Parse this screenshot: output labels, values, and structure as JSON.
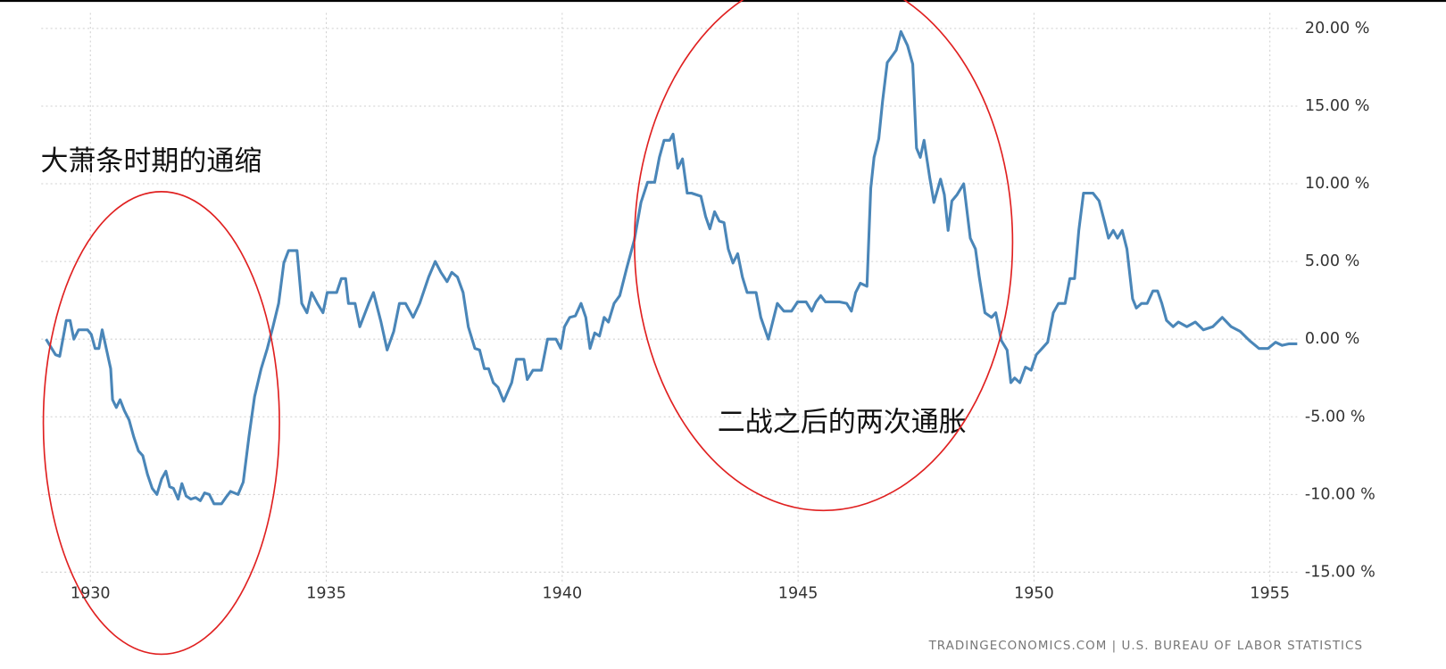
{
  "chart_data": {
    "type": "line",
    "x": [
      1929.06,
      1929.26,
      1929.35,
      1929.49,
      1929.57,
      1929.65,
      1929.75,
      1929.94,
      1930.02,
      1930.1,
      1930.18,
      1930.25,
      1930.43,
      1930.47,
      1930.55,
      1930.63,
      1930.72,
      1930.82,
      1930.92,
      1931.02,
      1931.11,
      1931.21,
      1931.31,
      1931.41,
      1931.51,
      1931.6,
      1931.68,
      1931.76,
      1931.86,
      1931.94,
      1932.03,
      1932.13,
      1932.23,
      1932.33,
      1932.42,
      1932.52,
      1932.62,
      1932.78,
      1932.87,
      1932.97,
      1933.13,
      1933.24,
      1933.36,
      1933.48,
      1933.62,
      1933.75,
      1933.87,
      1933.99,
      1934.1,
      1934.2,
      1934.38,
      1934.48,
      1934.59,
      1934.69,
      1934.81,
      1934.93,
      1935.02,
      1935.22,
      1935.32,
      1935.41,
      1935.47,
      1935.61,
      1935.71,
      1935.9,
      1936.0,
      1936.16,
      1936.29,
      1936.43,
      1936.55,
      1936.68,
      1936.84,
      1936.98,
      1937.17,
      1937.31,
      1937.43,
      1937.56,
      1937.66,
      1937.78,
      1937.9,
      1938.01,
      1938.15,
      1938.25,
      1938.35,
      1938.44,
      1938.54,
      1938.64,
      1938.76,
      1938.93,
      1939.03,
      1939.19,
      1939.26,
      1939.38,
      1939.56,
      1939.69,
      1939.87,
      1939.97,
      1940.05,
      1940.16,
      1940.28,
      1940.4,
      1940.5,
      1940.59,
      1940.69,
      1940.79,
      1940.89,
      1940.98,
      1941.1,
      1941.22,
      1941.37,
      1941.53,
      1941.67,
      1941.81,
      1941.96,
      1942.06,
      1942.16,
      1942.28,
      1942.35,
      1942.45,
      1942.55,
      1942.65,
      1942.74,
      1942.94,
      1943.04,
      1943.13,
      1943.23,
      1943.33,
      1943.43,
      1943.52,
      1943.62,
      1943.72,
      1943.82,
      1943.92,
      1944.11,
      1944.21,
      1944.37,
      1944.56,
      1944.7,
      1944.86,
      1944.99,
      1945.17,
      1945.29,
      1945.38,
      1945.48,
      1945.58,
      1945.87,
      1946.03,
      1946.13,
      1946.22,
      1946.32,
      1946.46,
      1946.54,
      1946.61,
      1946.71,
      1946.79,
      1946.89,
      1947.01,
      1947.08,
      1947.18,
      1947.32,
      1947.43,
      1947.51,
      1947.59,
      1947.67,
      1947.79,
      1947.88,
      1948.02,
      1948.1,
      1948.18,
      1948.26,
      1948.37,
      1948.51,
      1948.65,
      1948.76,
      1948.84,
      1948.96,
      1949.1,
      1949.19,
      1949.31,
      1949.43,
      1949.51,
      1949.59,
      1949.7,
      1949.82,
      1949.94,
      1950.05,
      1950.17,
      1950.29,
      1950.41,
      1950.52,
      1950.66,
      1950.76,
      1950.86,
      1950.95,
      1951.05,
      1951.25,
      1951.38,
      1951.5,
      1951.58,
      1951.68,
      1951.77,
      1951.87,
      1951.97,
      1952.09,
      1952.17,
      1952.28,
      1952.4,
      1952.52,
      1952.62,
      1952.71,
      1952.81,
      1952.95,
      1953.06,
      1953.24,
      1953.42,
      1953.59,
      1953.79,
      1953.99,
      1954.18,
      1954.37,
      1954.57,
      1954.77,
      1954.96,
      1955.12,
      1955.26,
      1955.41,
      1955.58
    ],
    "values": [
      0,
      -1.0,
      -1.1,
      1.2,
      1.2,
      0,
      0.6,
      0.6,
      0.3,
      -0.6,
      -0.6,
      0.6,
      -1.9,
      -3.9,
      -4.4,
      -3.9,
      -4.6,
      -5.2,
      -6.3,
      -7.2,
      -7.5,
      -8.7,
      -9.6,
      -10.0,
      -9.0,
      -8.5,
      -9.5,
      -9.6,
      -10.3,
      -9.3,
      -10.1,
      -10.3,
      -10.2,
      -10.4,
      -9.9,
      -10.0,
      -10.6,
      -10.6,
      -10.2,
      -9.8,
      -10.0,
      -9.2,
      -6.3,
      -3.7,
      -1.9,
      -0.6,
      0.8,
      2.3,
      4.9,
      5.7,
      5.7,
      2.3,
      1.7,
      3.0,
      2.3,
      1.7,
      3.0,
      3.0,
      3.9,
      3.9,
      2.3,
      2.3,
      0.8,
      2.3,
      3.0,
      1.1,
      -0.7,
      0.5,
      2.3,
      2.3,
      1.4,
      2.3,
      4.0,
      5.0,
      4.3,
      3.7,
      4.3,
      4.0,
      3.0,
      0.8,
      -0.6,
      -0.7,
      -1.9,
      -1.9,
      -2.8,
      -3.1,
      -4.0,
      -2.8,
      -1.3,
      -1.3,
      -2.6,
      -2.0,
      -2.0,
      0,
      0,
      -0.6,
      0.8,
      1.4,
      1.5,
      2.3,
      1.4,
      -0.6,
      0.4,
      0.2,
      1.4,
      1.1,
      2.3,
      2.8,
      4.6,
      6.4,
      8.8,
      10.1,
      10.1,
      11.7,
      12.8,
      12.8,
      13.2,
      11.0,
      11.6,
      9.4,
      9.4,
      9.2,
      7.9,
      7.1,
      8.2,
      7.6,
      7.5,
      5.8,
      4.9,
      5.5,
      4.0,
      3.0,
      3.0,
      1.4,
      0,
      2.3,
      1.8,
      1.8,
      2.4,
      2.4,
      1.8,
      2.4,
      2.8,
      2.4,
      2.4,
      2.3,
      1.8,
      3.0,
      3.6,
      3.4,
      9.7,
      11.7,
      12.9,
      15.3,
      17.8,
      18.3,
      18.6,
      19.8,
      18.9,
      17.7,
      12.3,
      11.7,
      12.8,
      10.4,
      8.8,
      10.3,
      9.3,
      7.0,
      8.9,
      9.3,
      10.0,
      6.5,
      5.8,
      4.0,
      1.7,
      1.4,
      1.7,
      -0.1,
      -0.7,
      -2.8,
      -2.5,
      -2.8,
      -1.8,
      -2.0,
      -1.0,
      -0.6,
      -0.2,
      1.7,
      2.3,
      2.3,
      3.9,
      3.9,
      7.0,
      9.4,
      9.4,
      8.9,
      7.5,
      6.5,
      7.0,
      6.5,
      7.0,
      5.8,
      2.6,
      2.0,
      2.3,
      2.3,
      3.1,
      3.1,
      2.3,
      1.2,
      0.8,
      1.1,
      0.8,
      1.1,
      0.6,
      0.8,
      1.4,
      0.8,
      0.5,
      -0.1,
      -0.6,
      -0.6,
      -0.2,
      -0.4,
      -0.3,
      -0.3
    ],
    "color": "#4a86b8",
    "xlim": [
      1928.96,
      1955.58
    ],
    "xticks": [
      1930,
      1935,
      1940,
      1945,
      1950,
      1955
    ],
    "ylim": [
      -15.8,
      21
    ],
    "yticks": [
      {
        "value": -15,
        "label": "-15.00 %"
      },
      {
        "value": -10,
        "label": "-10.00 %"
      },
      {
        "value": -5,
        "label": "-5.00 %"
      },
      {
        "value": 0,
        "label": "0.00 %"
      },
      {
        "value": 5,
        "label": "5.00 %"
      },
      {
        "value": 10,
        "label": "10.00 %"
      },
      {
        "value": 15,
        "label": "15.00 %"
      },
      {
        "value": 20,
        "label": "20.00 %"
      }
    ],
    "grid": true,
    "annotations": [
      "大萧条时期的通缩",
      "二战之后的两次通胀"
    ],
    "source": "TRADINGECONOMICS.COM | U.S. BUREAU OF LABOR STATISTICS"
  }
}
